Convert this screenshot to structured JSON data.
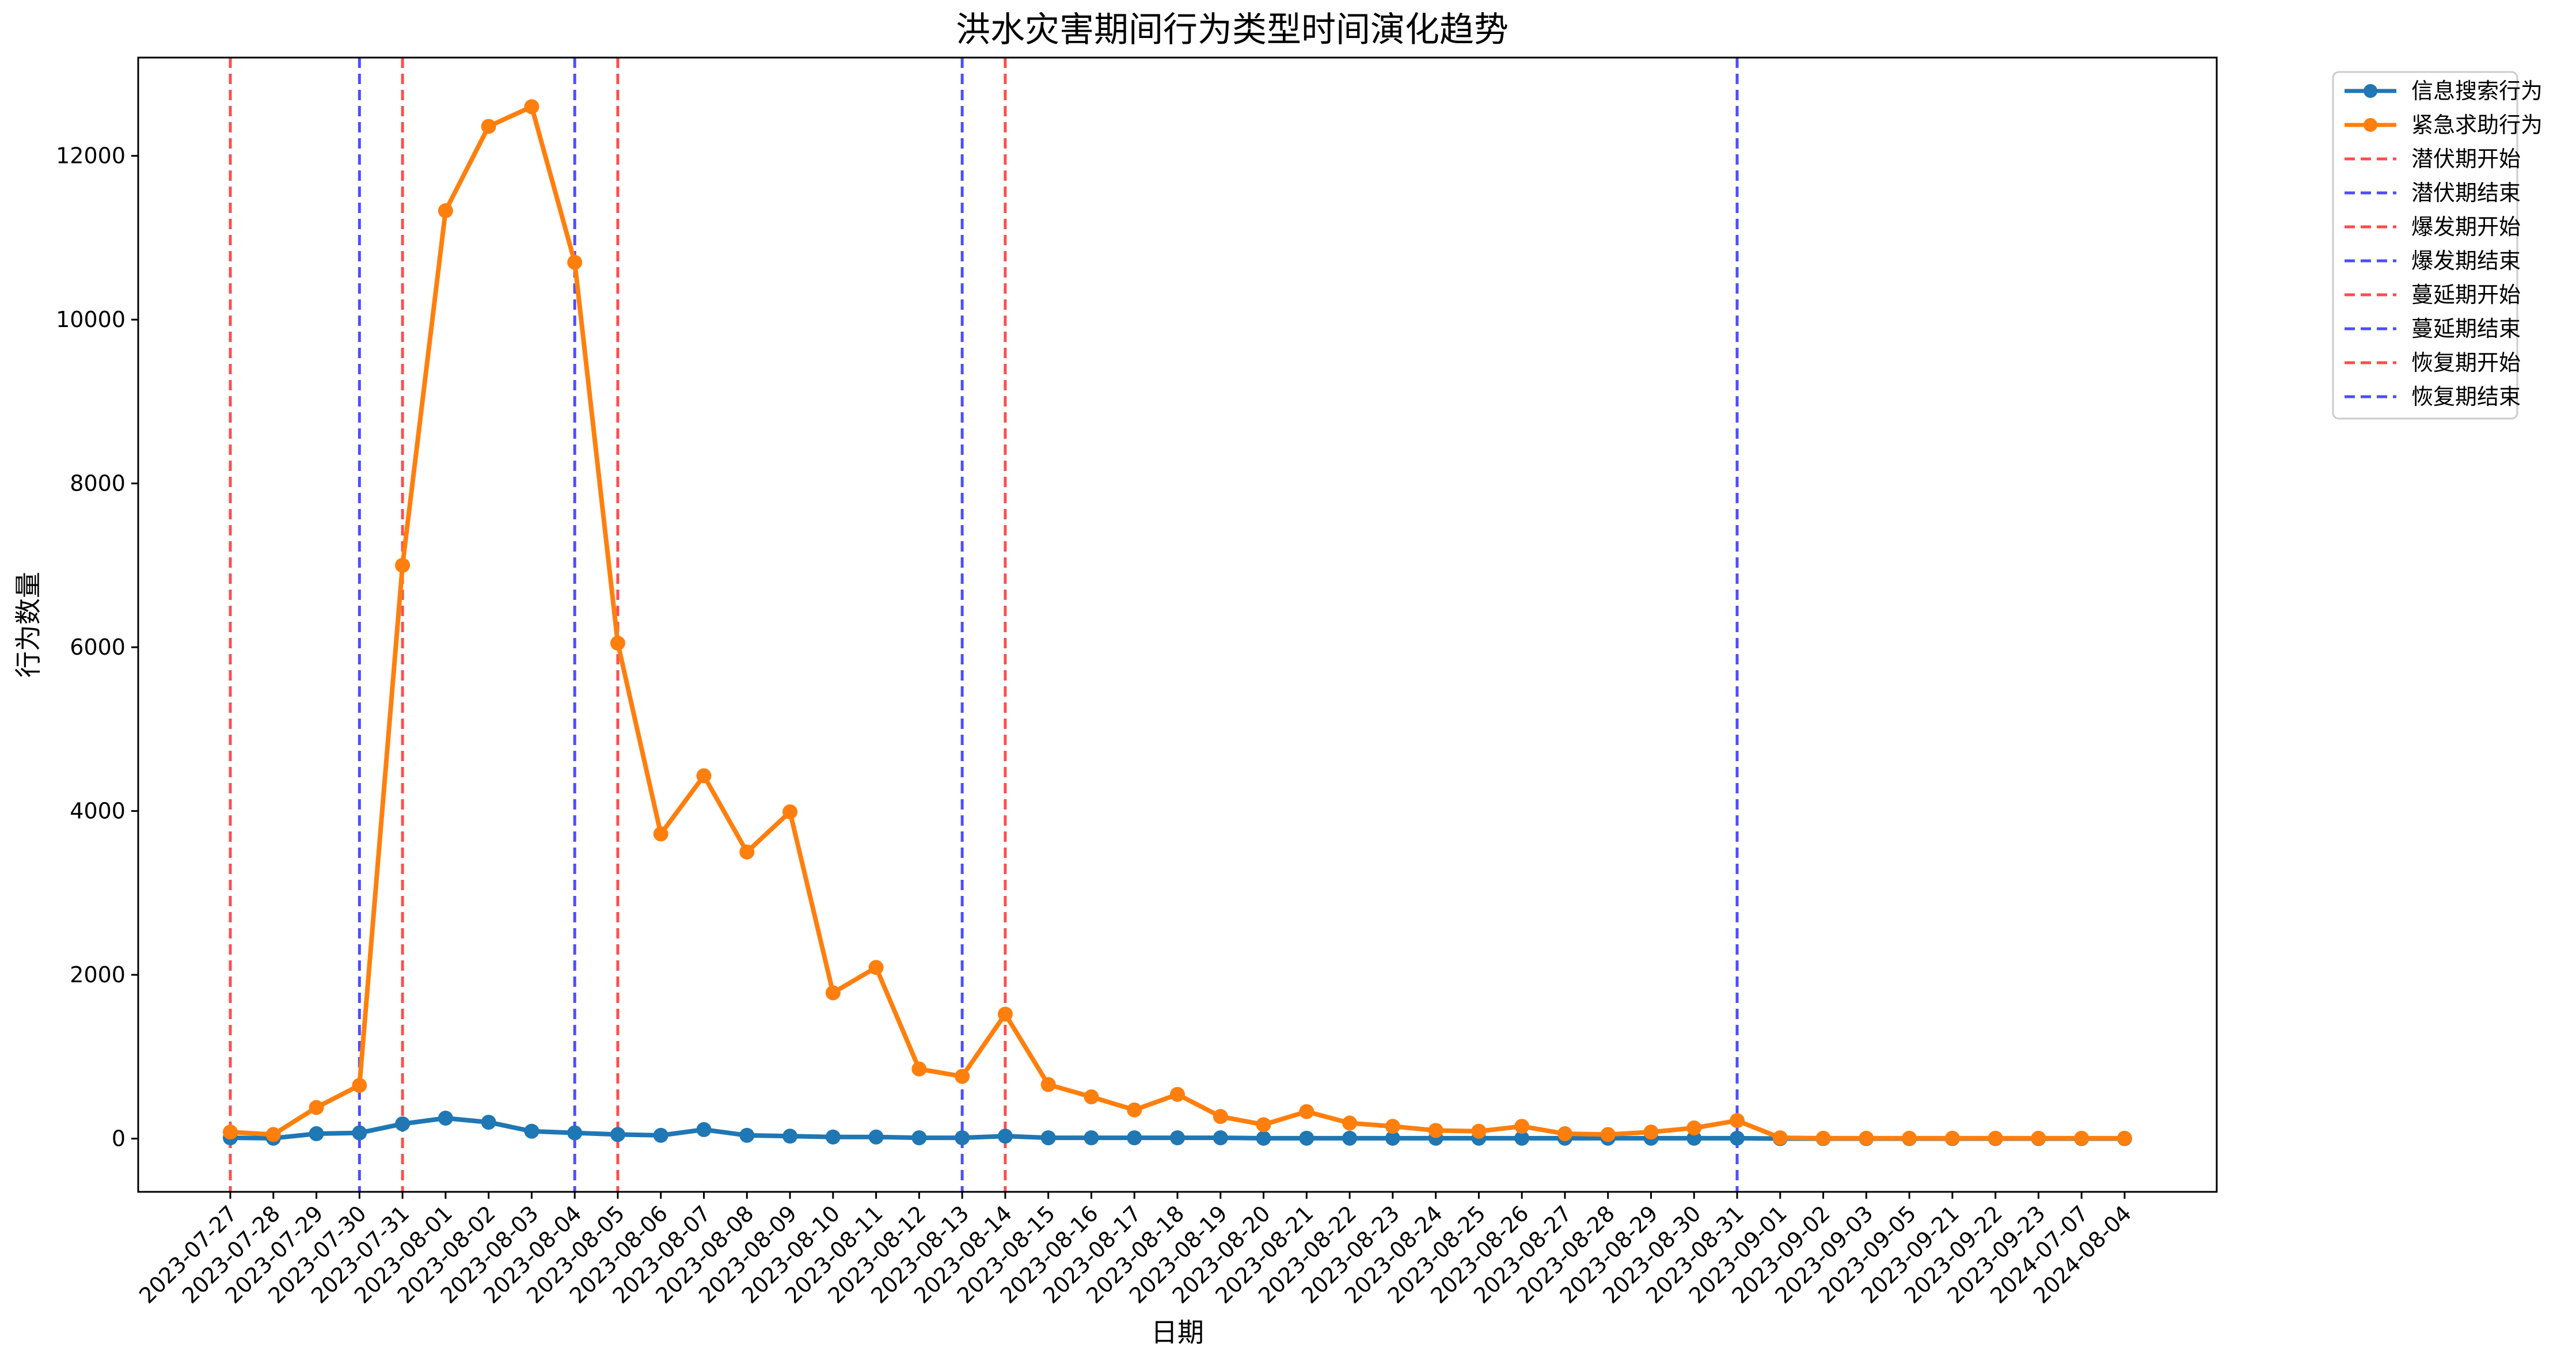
{
  "chart_data": {
    "type": "line",
    "title": "洪水灾害期间行为类型时间演化趋势",
    "xlabel": "日期",
    "ylabel": "行为数量",
    "ylim": [
      -650,
      13200
    ],
    "yticks": [
      0,
      2000,
      4000,
      6000,
      8000,
      10000,
      12000
    ],
    "grid": false,
    "legend_position": "outside-top-right",
    "categories": [
      "2023-07-27",
      "2023-07-28",
      "2023-07-29",
      "2023-07-30",
      "2023-07-31",
      "2023-08-01",
      "2023-08-02",
      "2023-08-03",
      "2023-08-04",
      "2023-08-05",
      "2023-08-06",
      "2023-08-07",
      "2023-08-08",
      "2023-08-09",
      "2023-08-10",
      "2023-08-11",
      "2023-08-12",
      "2023-08-13",
      "2023-08-14",
      "2023-08-15",
      "2023-08-16",
      "2023-08-17",
      "2023-08-18",
      "2023-08-19",
      "2023-08-20",
      "2023-08-21",
      "2023-08-22",
      "2023-08-23",
      "2023-08-24",
      "2023-08-25",
      "2023-08-26",
      "2023-08-27",
      "2023-08-28",
      "2023-08-29",
      "2023-08-30",
      "2023-08-31",
      "2023-09-01",
      "2023-09-02",
      "2023-09-03",
      "2023-09-05",
      "2023-09-21",
      "2023-09-22",
      "2023-09-23",
      "2024-07-07",
      "2024-08-04"
    ],
    "series": [
      {
        "name": "信息搜索行为",
        "color": "#1f77b4",
        "values": [
          10,
          5,
          60,
          70,
          180,
          250,
          200,
          90,
          70,
          50,
          40,
          110,
          40,
          30,
          20,
          20,
          10,
          10,
          30,
          10,
          10,
          10,
          10,
          10,
          5,
          5,
          5,
          5,
          5,
          5,
          5,
          5,
          5,
          5,
          5,
          5,
          0,
          0,
          0,
          0,
          0,
          0,
          0,
          0,
          0
        ]
      },
      {
        "name": "紧急求助行为",
        "color": "#ff7f0e",
        "values": [
          80,
          50,
          380,
          650,
          7000,
          11330,
          12360,
          12600,
          10700,
          6050,
          3720,
          4430,
          3500,
          3990,
          1780,
          2090,
          850,
          760,
          1520,
          660,
          510,
          350,
          540,
          270,
          170,
          330,
          190,
          150,
          100,
          90,
          150,
          60,
          50,
          80,
          130,
          220,
          10,
          5,
          5,
          5,
          5,
          5,
          5,
          5,
          5
        ]
      }
    ],
    "phase_lines": [
      {
        "label": "潜伏期开始",
        "category": "2023-07-27",
        "color": "#ff4d4d"
      },
      {
        "label": "潜伏期结束",
        "category": "2023-07-30",
        "color": "#4d4dff"
      },
      {
        "label": "爆发期开始",
        "category": "2023-07-31",
        "color": "#ff4d4d"
      },
      {
        "label": "爆发期结束",
        "category": "2023-08-04",
        "color": "#4d4dff"
      },
      {
        "label": "蔓延期开始",
        "category": "2023-08-05",
        "color": "#ff4d4d"
      },
      {
        "label": "蔓延期结束",
        "category": "2023-08-13",
        "color": "#4d4dff"
      },
      {
        "label": "恢复期开始",
        "category": "2023-08-14",
        "color": "#ff4d4d"
      },
      {
        "label": "恢复期结束",
        "category": "2023-08-31",
        "color": "#4d4dff"
      }
    ]
  }
}
